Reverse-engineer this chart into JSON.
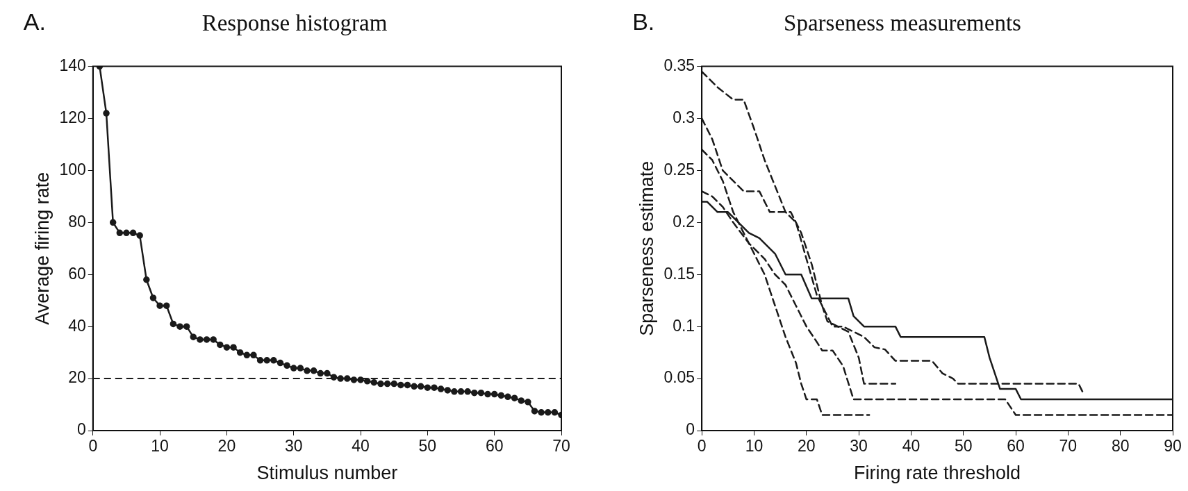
{
  "chart_data": [
    {
      "type": "line",
      "title": "Response histogram",
      "annotations": [
        "A."
      ],
      "xlabel": "Stimulus number",
      "ylabel": "Average firing rate",
      "xlim": [
        0,
        70
      ],
      "xticks": [
        0,
        10,
        20,
        30,
        40,
        50,
        60,
        70
      ],
      "ylim": [
        0,
        140
      ],
      "yticks": [
        0,
        20,
        40,
        60,
        80,
        100,
        120,
        140
      ],
      "grid": false,
      "legend": false,
      "marker": "circle",
      "line_style": "solid",
      "x": [
        1,
        2,
        3,
        4,
        5,
        6,
        7,
        8,
        9,
        10,
        11,
        12,
        13,
        14,
        15,
        16,
        17,
        18,
        19,
        20,
        21,
        22,
        23,
        24,
        25,
        26,
        27,
        28,
        29,
        30,
        31,
        32,
        33,
        34,
        35,
        36,
        37,
        38,
        39,
        40,
        41,
        42,
        43,
        44,
        45,
        46,
        47,
        48,
        49,
        50,
        51,
        52,
        53,
        54,
        55,
        56,
        57,
        58,
        59,
        60,
        61,
        62,
        63,
        64,
        65,
        66,
        67,
        68,
        69,
        70
      ],
      "series": [
        {
          "color": "#1a1a1a",
          "values": [
            140,
            122,
            80,
            76,
            76,
            76,
            75,
            58,
            51,
            48,
            48,
            41,
            40,
            40,
            36,
            35,
            35,
            35,
            33,
            32,
            32,
            30,
            29,
            29,
            27,
            27,
            27,
            26,
            25,
            24,
            24,
            23,
            23,
            22,
            22,
            20.5,
            20,
            20,
            19.5,
            19.5,
            19,
            18.5,
            18,
            18,
            18,
            17.5,
            17.5,
            17,
            17,
            16.5,
            16.5,
            16,
            15.5,
            15,
            15,
            15,
            14.5,
            14.5,
            14,
            14,
            13.5,
            13,
            12.5,
            11.5,
            11,
            7.5,
            7,
            7,
            7,
            6
          ]
        }
      ],
      "ref_lines": [
        {
          "axis": "y",
          "value": 20,
          "color": "#1a1a1a",
          "line_style": "dashed"
        }
      ]
    },
    {
      "type": "line",
      "title": "Sparseness measurements",
      "annotations": [
        "B."
      ],
      "xlabel": "Firing rate threshold",
      "ylabel": "Sparseness estimate",
      "xlim": [
        0,
        90
      ],
      "xticks": [
        0,
        10,
        20,
        30,
        40,
        50,
        60,
        70,
        80,
        90
      ],
      "ylim": [
        0,
        0.35
      ],
      "yticks": [
        0,
        0.05,
        0.1,
        0.15,
        0.2,
        0.25,
        0.3,
        0.35
      ],
      "grid": false,
      "legend": false,
      "marker": "none",
      "series": [
        {
          "color": "#1a1a1a",
          "line_style": "solid",
          "x": [
            0,
            1,
            3,
            5,
            7,
            9,
            11,
            13,
            14,
            16,
            19,
            21,
            28,
            29,
            31,
            37,
            38,
            54,
            55,
            57,
            60,
            61,
            90
          ],
          "values": [
            0.22,
            0.22,
            0.21,
            0.21,
            0.2,
            0.19,
            0.185,
            0.175,
            0.17,
            0.15,
            0.15,
            0.127,
            0.127,
            0.11,
            0.1,
            0.1,
            0.09,
            0.09,
            0.07,
            0.04,
            0.04,
            0.03,
            0.03
          ]
        },
        {
          "color": "#1a1a1a",
          "line_style": "dashed",
          "x": [
            0,
            3,
            6,
            8,
            10,
            12,
            14,
            16,
            18,
            20,
            22,
            24,
            25,
            27,
            29,
            31,
            33,
            35,
            37,
            44,
            46,
            48,
            49,
            72,
            73
          ],
          "values": [
            0.345,
            0.33,
            0.318,
            0.318,
            0.29,
            0.26,
            0.235,
            0.21,
            0.2,
            0.165,
            0.13,
            0.11,
            0.1,
            0.1,
            0.095,
            0.09,
            0.08,
            0.078,
            0.067,
            0.067,
            0.055,
            0.05,
            0.045,
            0.045,
            0.035
          ]
        },
        {
          "color": "#1a1a1a",
          "line_style": "dashed",
          "x": [
            0,
            2,
            4,
            6,
            8,
            11,
            13,
            17,
            19,
            21,
            23,
            24,
            26,
            28,
            30,
            31,
            37
          ],
          "values": [
            0.3,
            0.28,
            0.25,
            0.24,
            0.23,
            0.23,
            0.21,
            0.21,
            0.19,
            0.16,
            0.12,
            0.105,
            0.1,
            0.095,
            0.07,
            0.045,
            0.045
          ]
        },
        {
          "color": "#1a1a1a",
          "line_style": "dashed",
          "x": [
            0,
            2,
            4,
            6,
            8,
            10,
            12,
            14,
            16,
            18,
            19,
            20,
            22,
            23,
            32
          ],
          "values": [
            0.27,
            0.26,
            0.24,
            0.21,
            0.19,
            0.17,
            0.15,
            0.12,
            0.09,
            0.065,
            0.045,
            0.03,
            0.03,
            0.015,
            0.015
          ]
        },
        {
          "color": "#1a1a1a",
          "line_style": "dashed",
          "x": [
            0,
            2,
            4,
            6,
            9,
            12,
            14,
            16,
            18,
            20,
            22,
            23,
            25,
            27,
            29,
            58,
            60,
            90
          ],
          "values": [
            0.23,
            0.225,
            0.215,
            0.2,
            0.18,
            0.165,
            0.15,
            0.14,
            0.12,
            0.1,
            0.085,
            0.077,
            0.077,
            0.062,
            0.03,
            0.03,
            0.015,
            0.015
          ]
        }
      ]
    }
  ]
}
